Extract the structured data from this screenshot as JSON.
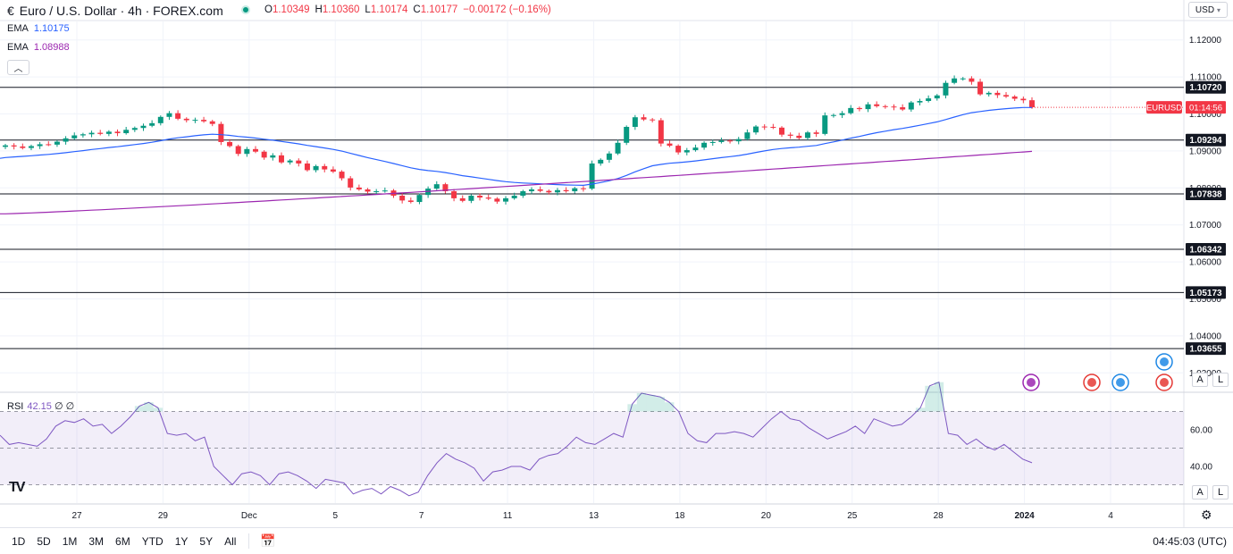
{
  "header": {
    "symbol_title": "Euro / U.S. Dollar · 4h · FOREX.com",
    "ohlc": {
      "o_label": "O",
      "o": "1.10349",
      "h_label": "H",
      "h": "1.10360",
      "l_label": "L",
      "l": "1.10174",
      "c_label": "C",
      "c": "1.10177",
      "change": "−0.00172 (−0.16%)"
    },
    "status_color": "#089981"
  },
  "indicators": {
    "ema1_label": "EMA",
    "ema1_value": "1.10175",
    "ema1_color": "#2962ff",
    "ema2_label": "EMA",
    "ema2_value": "1.08988",
    "ema2_color": "#9c27b0",
    "collapse_icon": "chevron-up-icon"
  },
  "currency_selector": "USD",
  "price_axis": {
    "ticks": [
      "1.12000",
      "1.11000",
      "1.10000",
      "1.09000",
      "1.08000",
      "1.07000",
      "1.06000",
      "1.05000",
      "1.04000",
      "1.03000"
    ],
    "hlines": [
      {
        "label": "1.10720",
        "value": 1.1072
      },
      {
        "label": "1.09294",
        "value": 1.09294
      },
      {
        "label": "1.07838",
        "value": 1.07838
      },
      {
        "label": "1.06342",
        "value": 1.06342
      },
      {
        "label": "1.05173",
        "value": 1.05173
      },
      {
        "label": "1.03655",
        "value": 1.03655
      }
    ],
    "last_price_tag": {
      "symbol": "EURUSD",
      "countdown": "01:14:56",
      "value": 1.10177,
      "color": "#f23645"
    },
    "auto_label": "A",
    "log_label": "L"
  },
  "rsi": {
    "label": "RSI",
    "value": "42.15",
    "extra1": "∅",
    "extra2": "∅",
    "ticks": [
      "60.00",
      "40.00"
    ],
    "levels": [
      70,
      50,
      30
    ],
    "auto_label": "A",
    "log_label": "L",
    "color": "#7e57c2"
  },
  "time_axis": {
    "labels": [
      {
        "text": "27",
        "bold": false
      },
      {
        "text": "29",
        "bold": false
      },
      {
        "text": "Dec",
        "bold": false
      },
      {
        "text": "5",
        "bold": false
      },
      {
        "text": "7",
        "bold": false
      },
      {
        "text": "11",
        "bold": false
      },
      {
        "text": "13",
        "bold": false
      },
      {
        "text": "18",
        "bold": false
      },
      {
        "text": "20",
        "bold": false
      },
      {
        "text": "25",
        "bold": false
      },
      {
        "text": "28",
        "bold": false
      },
      {
        "text": "2024",
        "bold": true
      },
      {
        "text": "4",
        "bold": false
      }
    ]
  },
  "events": [
    {
      "icon": "lightning-icon",
      "color": "#9c27b0"
    },
    {
      "icon": "us-flag-icon",
      "color": "#e53935"
    },
    {
      "icon": "eu-flag-icon",
      "color": "#1e88e5"
    }
  ],
  "bottom_bar": {
    "ranges": [
      "1D",
      "5D",
      "1M",
      "3M",
      "6M",
      "YTD",
      "1Y",
      "5Y",
      "All"
    ],
    "calendar_icon": "calendar-range-icon",
    "clock": "04:45:03 (UTC)"
  },
  "logo_text": "TV",
  "settings_icon": "gear-icon",
  "chart_data": {
    "type": "candlestick",
    "symbol": "EURUSD",
    "timeframe": "4h",
    "colors": {
      "up": "#089981",
      "down": "#f23645",
      "ema_fast": "#2962ff",
      "ema_slow": "#9c27b0",
      "rsi": "#7e57c2"
    },
    "ylim": [
      1.025,
      1.125
    ],
    "candles_close": [
      1.0915,
      1.0912,
      1.0908,
      1.0913,
      1.0918,
      1.0917,
      1.0925,
      1.0934,
      1.0942,
      1.0945,
      1.0949,
      1.0946,
      1.0952,
      1.0948,
      1.0957,
      1.0962,
      1.0968,
      1.0975,
      1.0992,
      1.1002,
      1.0987,
      1.0983,
      1.0984,
      1.098,
      1.0973,
      1.0924,
      1.0913,
      1.0892,
      1.0905,
      1.0898,
      1.0882,
      1.0888,
      1.0869,
      1.0874,
      1.0866,
      1.0848,
      1.0859,
      1.085,
      1.0844,
      1.0826,
      1.0801,
      1.0796,
      1.079,
      1.0791,
      1.0793,
      1.0779,
      1.0766,
      1.0762,
      1.0781,
      1.0798,
      1.081,
      1.0791,
      1.0772,
      1.0765,
      1.0779,
      1.0774,
      1.0771,
      1.0763,
      1.0772,
      1.0779,
      1.0791,
      1.0796,
      1.0792,
      1.0788,
      1.0794,
      1.0791,
      1.0799,
      1.0798,
      1.0866,
      1.0876,
      1.0893,
      1.0922,
      1.0965,
      1.0991,
      1.0985,
      1.0983,
      1.092,
      1.0914,
      1.0896,
      1.0902,
      1.0909,
      1.0922,
      1.0924,
      1.0928,
      1.0926,
      1.0932,
      1.095,
      1.0966,
      1.0965,
      1.0963,
      1.0944,
      1.0941,
      1.0935,
      1.095,
      1.0946,
      1.0996,
      1.0997,
      1.1002,
      1.1016,
      1.1013,
      1.1026,
      1.1021,
      1.102,
      1.1018,
      1.1012,
      1.1031,
      1.1035,
      1.1042,
      1.105,
      1.1084,
      1.1096,
      1.1096,
      1.1087,
      1.1053,
      1.1057,
      1.1051,
      1.1047,
      1.1041,
      1.1037,
      1.1018
    ],
    "ema_fast_range": [
      1.088,
      1.10175
    ],
    "ema_slow_range": [
      1.073,
      1.08988
    ],
    "rsi_ylim": [
      20,
      80
    ],
    "rsi_values": [
      57,
      52,
      53,
      52,
      51,
      55,
      62,
      65,
      64,
      66,
      62,
      63,
      58,
      62,
      67,
      73,
      75,
      72,
      58,
      57,
      58,
      54,
      56,
      40,
      35,
      30,
      36,
      37,
      35,
      30,
      36,
      37,
      35,
      32,
      28,
      33,
      32,
      31,
      25,
      27,
      28,
      25,
      29,
      27,
      24,
      26,
      35,
      42,
      47,
      44,
      42,
      39,
      32,
      37,
      38,
      40,
      40,
      38,
      44,
      46,
      47,
      51,
      56,
      53,
      52,
      55,
      58,
      56,
      74,
      80,
      79,
      78,
      75,
      70,
      58,
      54,
      53,
      58,
      58,
      59,
      58,
      56,
      61,
      66,
      70,
      66,
      65,
      61,
      58,
      55,
      57,
      59,
      62,
      58,
      66,
      64,
      62,
      63,
      67,
      72,
      84,
      86,
      58,
      57,
      52,
      55,
      51,
      49,
      52,
      48,
      44,
      42
    ],
    "event_x_fraction": [
      0.87,
      0.92,
      0.98
    ]
  }
}
